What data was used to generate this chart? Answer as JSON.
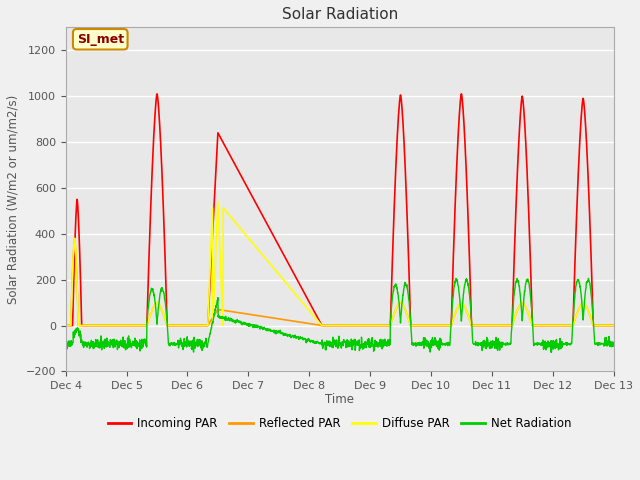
{
  "title": "Solar Radiation",
  "ylabel": "Solar Radiation (W/m2 or um/m2/s)",
  "xlabel": "Time",
  "ylim": [
    -200,
    1300
  ],
  "yticks": [
    -200,
    0,
    200,
    400,
    600,
    800,
    1000,
    1200
  ],
  "annotation_text": "SI_met",
  "bg_color": "#e8e8e8",
  "fig_bg_color": "#f0f0f0",
  "colors": {
    "incoming": "#ff0000",
    "reflected": "#ff9900",
    "diffuse": "#ffff00",
    "net": "#00cc00"
  },
  "legend_labels": [
    "Incoming PAR",
    "Reflected PAR",
    "Diffuse PAR",
    "Net Radiation"
  ],
  "x_tick_labels": [
    "Dec 4",
    "Dec 5",
    "Dec 6",
    "Dec 7",
    "Dec 8",
    "Dec 9",
    "Dec 10",
    "Dec 11",
    "Dec 12",
    "Dec 13"
  ],
  "x_tick_positions": [
    0,
    24,
    48,
    72,
    96,
    120,
    144,
    168,
    192,
    216
  ]
}
